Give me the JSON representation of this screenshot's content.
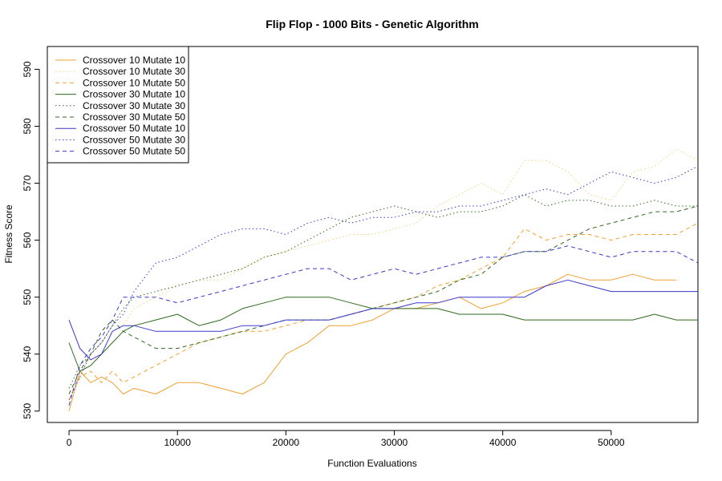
{
  "chart_data": {
    "type": "line",
    "title": "Flip Flop - 1000 Bits - Genetic Algorithm",
    "xlabel": "Function Evaluations",
    "ylabel": "Fitness Score",
    "xlim": [
      -2000,
      58000
    ],
    "ylim": [
      528,
      594
    ],
    "xticks": [
      0,
      10000,
      20000,
      30000,
      40000,
      50000
    ],
    "yticks": [
      530,
      540,
      550,
      560,
      570,
      580,
      590
    ],
    "grid": false,
    "legend_position": "top-left",
    "series": [
      {
        "name": "Crossover 10 Mutate 10",
        "color": "#f0a030",
        "dash": "solid",
        "x": [
          0,
          1000,
          2000,
          3000,
          4000,
          5000,
          6000,
          8000,
          10000,
          12000,
          14000,
          16000,
          18000,
          20000,
          22000,
          24000,
          26000,
          28000,
          30000,
          32000,
          34000,
          36000,
          38000,
          40000,
          42000,
          44000,
          46000,
          48000,
          50000,
          52000,
          54000,
          56000
        ],
        "y": [
          530,
          537,
          535,
          536,
          535,
          533,
          534,
          533,
          535,
          535,
          534,
          533,
          535,
          540,
          542,
          545,
          545,
          546,
          548,
          548,
          549,
          550,
          548,
          549,
          551,
          552,
          554,
          553,
          553,
          554,
          553,
          553
        ]
      },
      {
        "name": "Crossover 10 Mutate 30",
        "color": "#f5d076",
        "dash": "dot",
        "x": [
          0,
          1000,
          2000,
          3000,
          4000,
          5000,
          6000,
          8000,
          10000,
          12000,
          14000,
          16000,
          18000,
          20000,
          22000,
          24000,
          26000,
          28000,
          30000,
          32000,
          34000,
          36000,
          38000,
          40000,
          42000,
          44000,
          46000,
          48000,
          50000,
          52000,
          54000,
          56000,
          58000
        ],
        "y": [
          531,
          536,
          540,
          542,
          544,
          545,
          548,
          550,
          552,
          553,
          553,
          555,
          557,
          558,
          559,
          560,
          561,
          561,
          562,
          563,
          566,
          568,
          570,
          568,
          574,
          574,
          572,
          568,
          567,
          572,
          573,
          576,
          574
        ]
      },
      {
        "name": "Crossover 10 Mutate 50",
        "color": "#f0a030",
        "dash": "dash",
        "x": [
          0,
          1000,
          2000,
          3000,
          4000,
          5000,
          6000,
          8000,
          10000,
          12000,
          14000,
          16000,
          18000,
          20000,
          22000,
          24000,
          26000,
          28000,
          30000,
          32000,
          34000,
          36000,
          38000,
          40000,
          42000,
          44000,
          46000,
          48000,
          50000,
          52000,
          54000,
          56000,
          58000
        ],
        "y": [
          532,
          536,
          537,
          535,
          537,
          535,
          536,
          538,
          540,
          542,
          543,
          544,
          544,
          545,
          546,
          546,
          547,
          548,
          549,
          550,
          552,
          553,
          555,
          557,
          562,
          560,
          561,
          561,
          560,
          561,
          561,
          561,
          563
        ]
      },
      {
        "name": "Crossover 30 Mutate 10",
        "color": "#2e6b1f",
        "dash": "solid",
        "x": [
          0,
          1000,
          2000,
          3000,
          4000,
          5000,
          6000,
          8000,
          10000,
          12000,
          14000,
          16000,
          18000,
          20000,
          22000,
          24000,
          26000,
          28000,
          30000,
          32000,
          34000,
          36000,
          38000,
          40000,
          42000,
          44000,
          46000,
          48000,
          50000,
          52000,
          54000,
          56000,
          58000
        ],
        "y": [
          542,
          537,
          538,
          540,
          542,
          544,
          545,
          546,
          547,
          545,
          546,
          548,
          549,
          550,
          550,
          550,
          549,
          548,
          548,
          548,
          548,
          547,
          547,
          547,
          546,
          546,
          546,
          546,
          546,
          546,
          547,
          546,
          546
        ]
      },
      {
        "name": "Crossover 30 Mutate 30",
        "color": "#2e6b1f",
        "dash": "dot",
        "x": [
          0,
          1000,
          2000,
          3000,
          4000,
          5000,
          6000,
          8000,
          10000,
          12000,
          14000,
          16000,
          18000,
          20000,
          22000,
          24000,
          26000,
          28000,
          30000,
          32000,
          34000,
          36000,
          38000,
          40000,
          42000,
          44000,
          46000,
          48000,
          50000,
          52000,
          54000,
          56000,
          58000
        ],
        "y": [
          534,
          538,
          540,
          542,
          545,
          548,
          550,
          551,
          552,
          553,
          554,
          555,
          557,
          558,
          560,
          562,
          564,
          565,
          566,
          565,
          564,
          565,
          565,
          566,
          568,
          566,
          567,
          567,
          566,
          566,
          567,
          566,
          566
        ]
      },
      {
        "name": "Crossover 30 Mutate 50",
        "color": "#2e6b1f",
        "dash": "dash",
        "x": [
          0,
          1000,
          2000,
          3000,
          4000,
          5000,
          6000,
          8000,
          10000,
          12000,
          14000,
          16000,
          18000,
          20000,
          22000,
          24000,
          26000,
          28000,
          30000,
          32000,
          34000,
          36000,
          38000,
          40000,
          42000,
          44000,
          46000,
          48000,
          50000,
          52000,
          54000,
          56000,
          58000
        ],
        "y": [
          533,
          537,
          540,
          544,
          546,
          544,
          543,
          541,
          541,
          542,
          543,
          544,
          545,
          546,
          546,
          546,
          547,
          548,
          549,
          550,
          551,
          553,
          554,
          557,
          558,
          558,
          560,
          562,
          563,
          564,
          565,
          565,
          566
        ]
      },
      {
        "name": "Crossover 50 Mutate 10",
        "color": "#3838cc",
        "dash": "solid",
        "x": [
          0,
          1000,
          2000,
          3000,
          4000,
          5000,
          6000,
          8000,
          10000,
          12000,
          14000,
          16000,
          18000,
          20000,
          22000,
          24000,
          26000,
          28000,
          30000,
          32000,
          34000,
          36000,
          38000,
          40000,
          42000,
          44000,
          46000,
          48000,
          50000,
          52000,
          54000,
          56000,
          58000
        ],
        "y": [
          546,
          541,
          539,
          540,
          544,
          545,
          545,
          544,
          544,
          544,
          544,
          545,
          545,
          546,
          546,
          546,
          547,
          548,
          548,
          549,
          549,
          550,
          550,
          550,
          550,
          552,
          553,
          552,
          551,
          551,
          551,
          551,
          551
        ]
      },
      {
        "name": "Crossover 50 Mutate 30",
        "color": "#3838cc",
        "dash": "dot",
        "x": [
          0,
          1000,
          2000,
          3000,
          4000,
          5000,
          6000,
          8000,
          10000,
          12000,
          14000,
          16000,
          18000,
          20000,
          22000,
          24000,
          26000,
          28000,
          30000,
          32000,
          34000,
          36000,
          38000,
          40000,
          42000,
          44000,
          46000,
          48000,
          50000,
          52000,
          54000,
          56000,
          58000
        ],
        "y": [
          532,
          536,
          540,
          542,
          545,
          547,
          551,
          556,
          557,
          559,
          561,
          562,
          562,
          561,
          563,
          564,
          563,
          564,
          564,
          565,
          565,
          566,
          566,
          567,
          568,
          569,
          568,
          570,
          572,
          571,
          570,
          571,
          573
        ]
      },
      {
        "name": "Crossover 50 Mutate 50",
        "color": "#3838cc",
        "dash": "dash",
        "x": [
          0,
          1000,
          2000,
          3000,
          4000,
          5000,
          6000,
          8000,
          10000,
          12000,
          14000,
          16000,
          18000,
          20000,
          22000,
          24000,
          26000,
          28000,
          30000,
          32000,
          34000,
          36000,
          38000,
          40000,
          42000,
          44000,
          46000,
          48000,
          50000,
          52000,
          54000,
          56000,
          58000
        ],
        "y": [
          531,
          538,
          541,
          543,
          546,
          550,
          550,
          550,
          549,
          550,
          551,
          552,
          553,
          554,
          555,
          555,
          553,
          554,
          555,
          554,
          555,
          556,
          557,
          557,
          558,
          558,
          559,
          558,
          557,
          558,
          558,
          558,
          556
        ]
      }
    ]
  }
}
